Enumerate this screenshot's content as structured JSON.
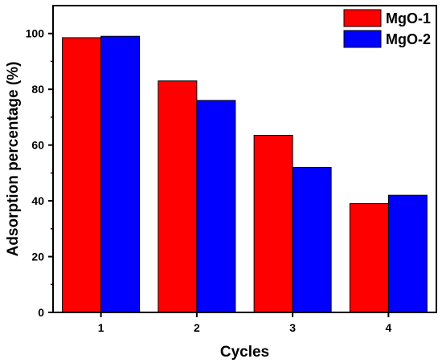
{
  "chart_data": {
    "type": "bar",
    "categories": [
      "1",
      "2",
      "3",
      "4"
    ],
    "series": [
      {
        "name": "MgO-1",
        "values": [
          98.5,
          83,
          63.5,
          39
        ],
        "color": "#ff0000"
      },
      {
        "name": "MgO-2",
        "values": [
          99,
          76,
          52,
          42
        ],
        "color": "#0000ff"
      }
    ],
    "xlabel": "Cycles",
    "ylabel": "Adsorption percentage (%)",
    "ylim": [
      0,
      110
    ],
    "yticks": [
      0,
      20,
      40,
      60,
      80,
      100
    ],
    "grid": false,
    "legend_position": "top-right"
  }
}
